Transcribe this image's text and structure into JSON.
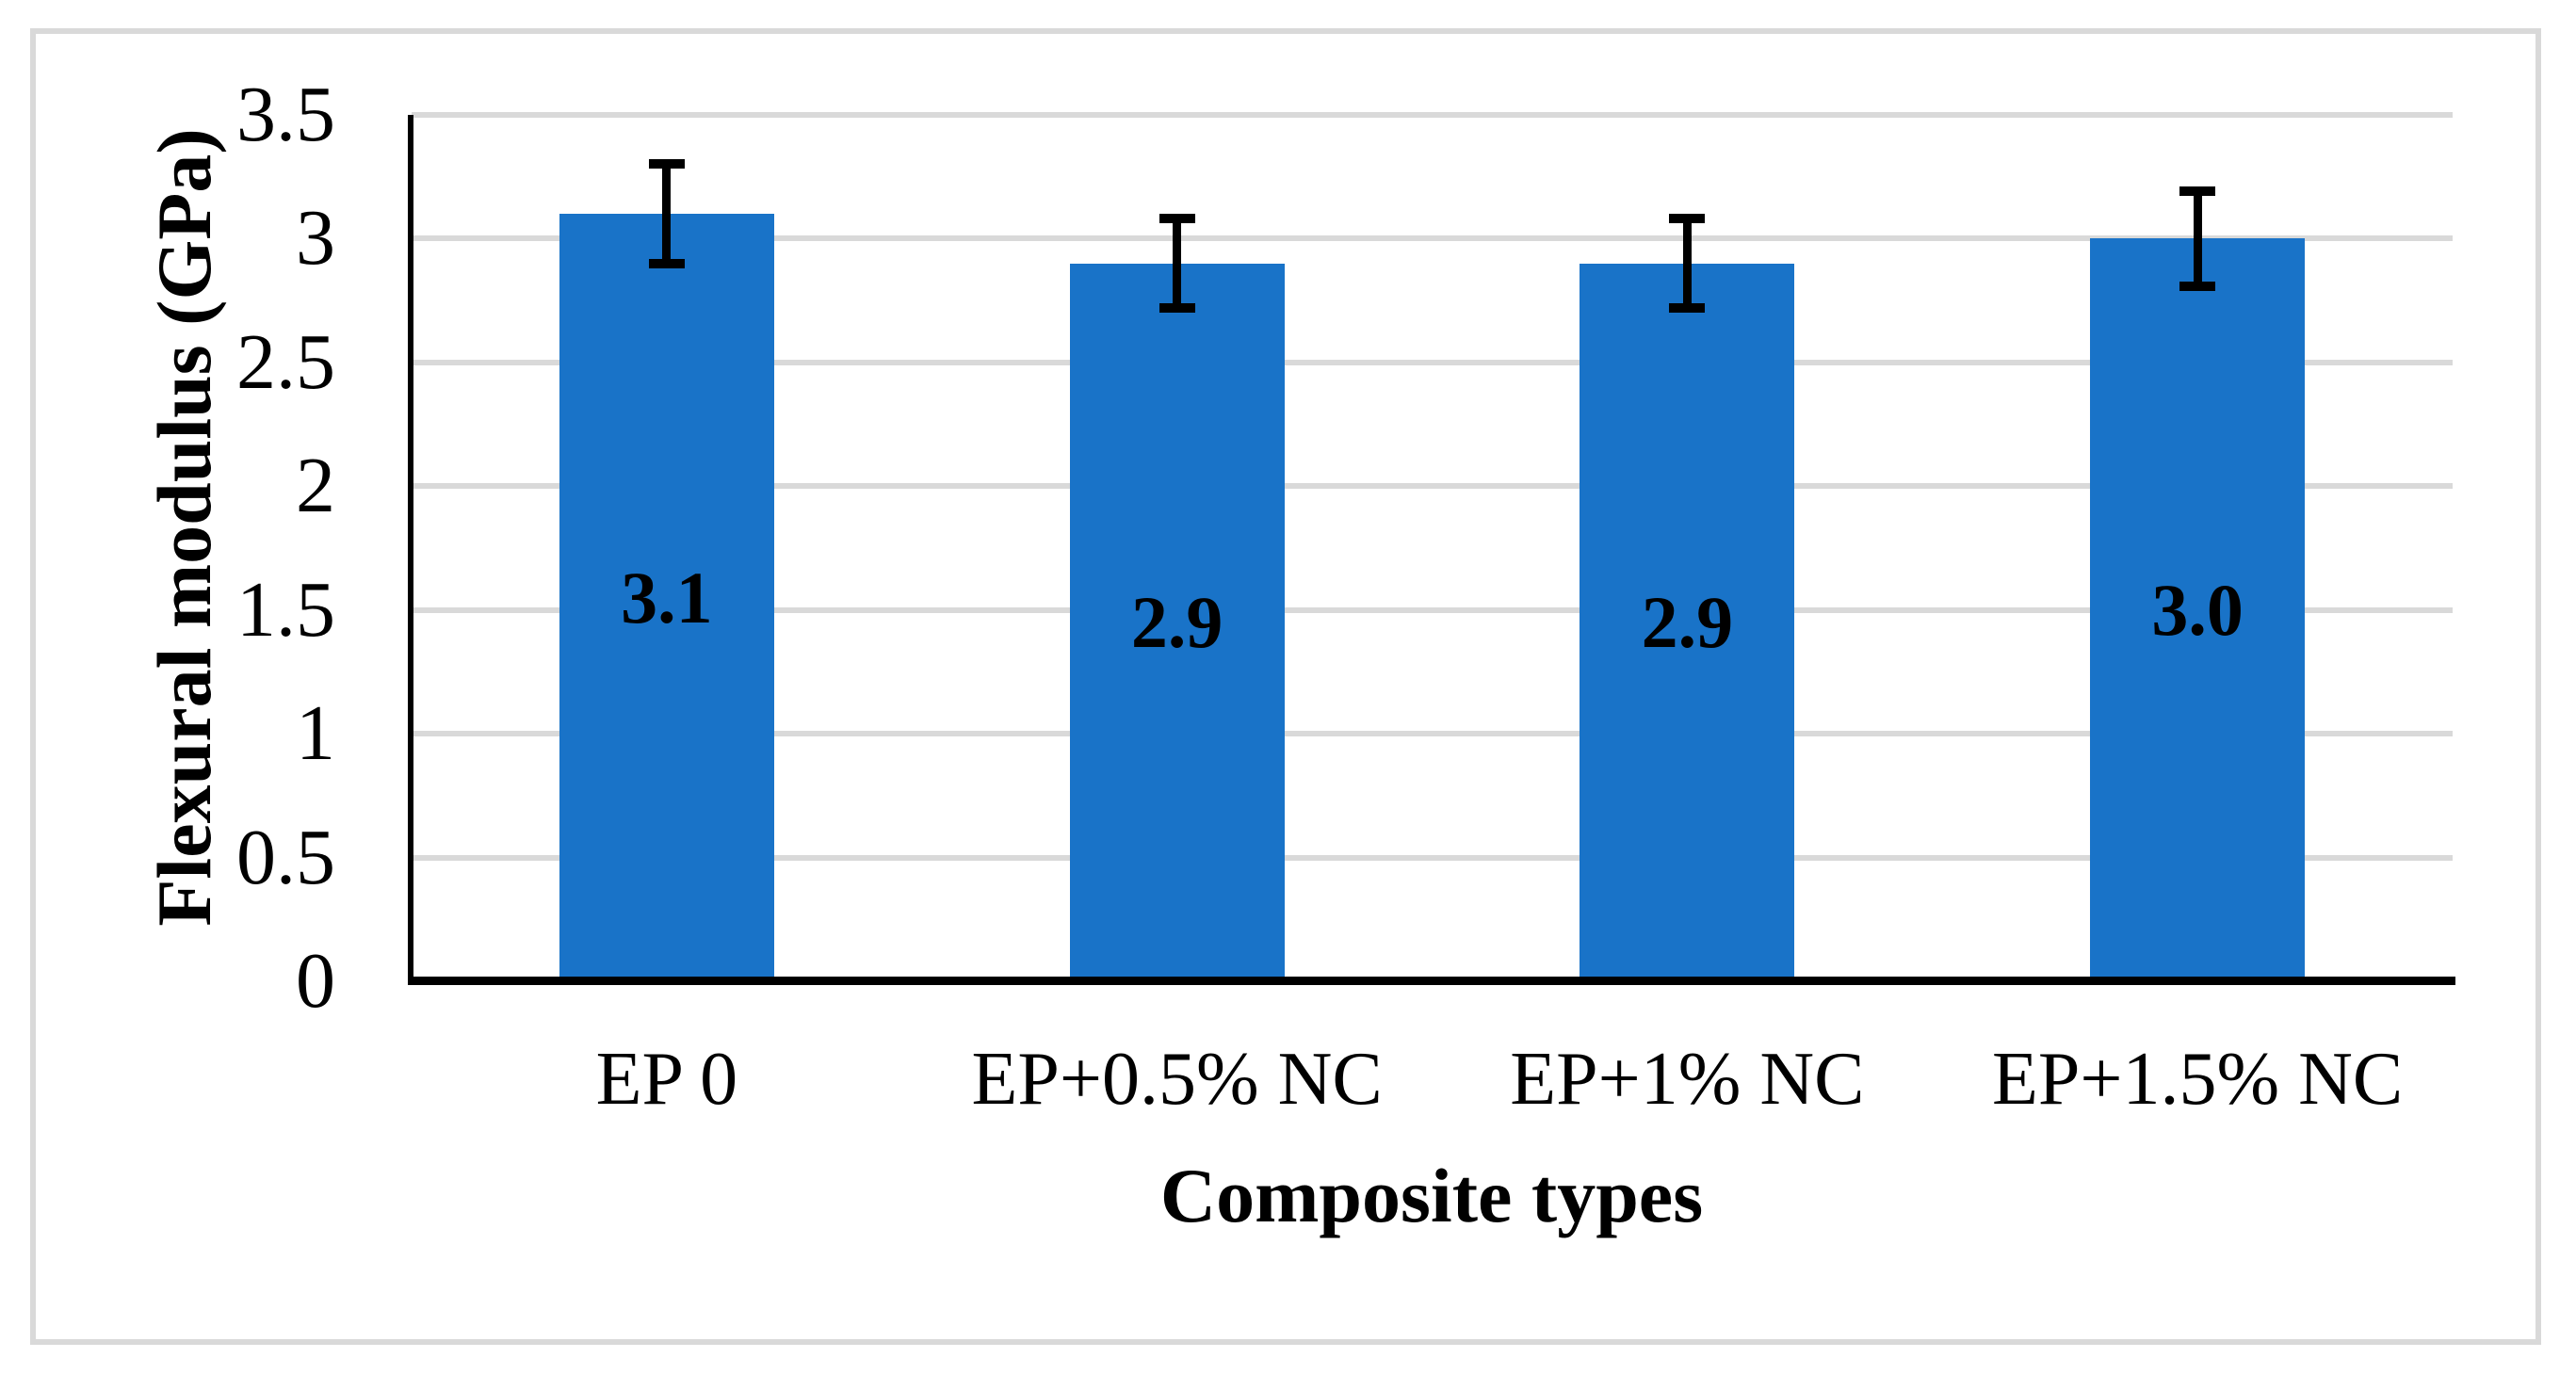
{
  "chart_data": {
    "type": "bar",
    "title": "",
    "categories": [
      "EP 0",
      "EP+0.5% NC",
      "EP+1% NC",
      "EP+1.5% NC"
    ],
    "values": [
      3.1,
      2.9,
      2.9,
      3.0
    ],
    "bar_value_labels": [
      "3.1",
      "2.9",
      "2.9",
      "3.0"
    ],
    "error_bars_plus": [
      0.22,
      0.2,
      0.2,
      0.21
    ],
    "error_bars_minus": [
      0.22,
      0.2,
      0.2,
      0.21
    ],
    "xlabel": "Composite types",
    "ylabel": "Flexural modulus (GPa)",
    "ylim": [
      0,
      3.5
    ],
    "ytick_values": [
      0,
      0.5,
      1,
      1.5,
      2,
      2.5,
      3,
      3.5
    ],
    "ytick_labels": [
      "0",
      "0.5",
      "1",
      "1.5",
      "2",
      "2.5",
      "3",
      "3.5"
    ],
    "grid": true,
    "legend_position": "none"
  },
  "colors": {
    "bar": "#1973c8",
    "grid": "#d9d9d9",
    "frame": "#d9d9d9",
    "axis": "#000000",
    "text": "#000000"
  }
}
